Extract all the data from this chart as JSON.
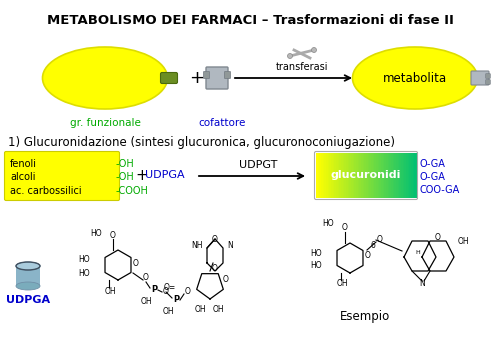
{
  "title": "METABOLISMO DEI FARMACI – Trasformazioni di fase II",
  "title_fontsize": 9.5,
  "bg_color": "#ffffff",
  "section2_title": "1) Glucuronidazione (sintesi glucuronica, glucuronoconiugazione)",
  "ellipse_color": "#ffff00",
  "ellipse_edge": "#dddd00",
  "ellipse1_label": "gr. funzionale",
  "ellipse1_label_color": "#00aa00",
  "ellipse2_label": "cofattore",
  "ellipse2_label_color": "#0000cc",
  "metabolita_label": "metabolita",
  "transferasi_label": "transferasi",
  "fenoli_text": [
    "fenoli",
    "alcoli",
    "ac. carbossilici"
  ],
  "fenoli_oh": [
    "-OH",
    "-OH",
    "-COOH"
  ],
  "fenoli_oh_color": "#00aa00",
  "glucuronidi_label": "glucuronidi",
  "products": [
    "O-GA",
    "O-GA",
    "COO-GA"
  ],
  "products_color": "#0000cc",
  "udpgt_label": "UDPGT",
  "udpga_label": "UDPGA",
  "udpga_label_color": "#0000cc",
  "esempio_label": "Esempio",
  "connector_color": "#6b8e23",
  "gray_connector": "#999999"
}
